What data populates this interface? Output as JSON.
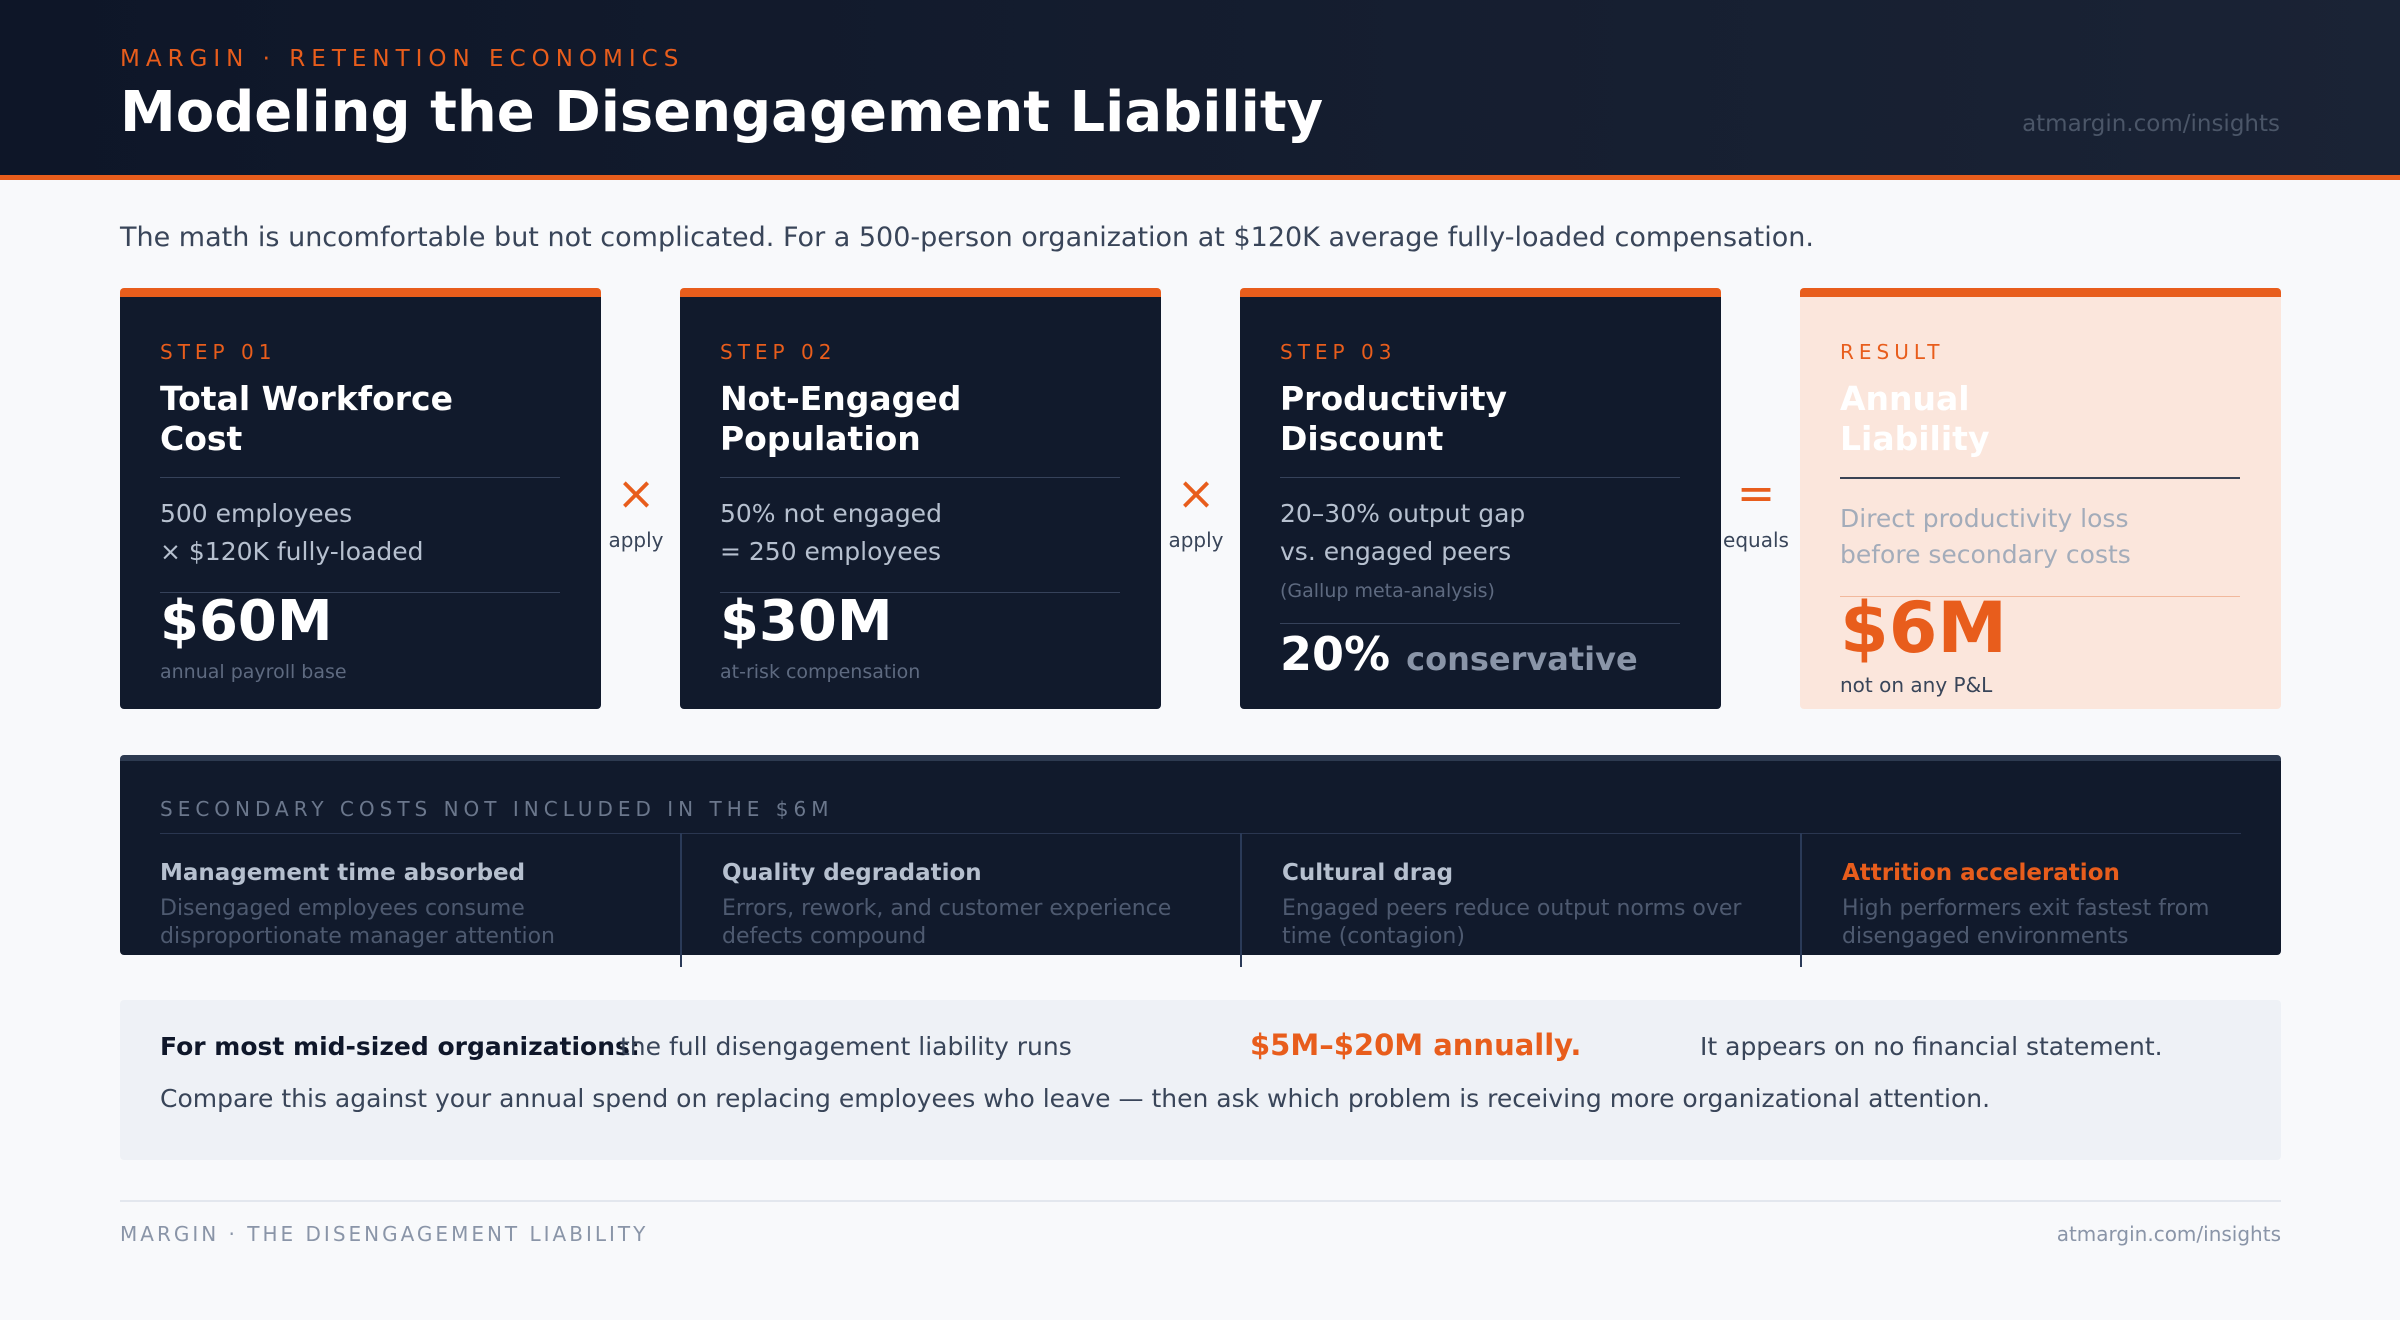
{
  "header": {
    "eyebrow": "MARGIN · RETENTION ECONOMICS",
    "title": "Modeling the Disengagement Liability",
    "url": "atmargin.com/insights"
  },
  "intro": "The math is uncomfortable but not complicated. For a 500-person organization at $120K average fully-loaded compensation.",
  "steps": [
    {
      "label": "STEP 01",
      "title": "Total Workforce Cost",
      "desc_line1": "500 employees",
      "desc_line2": "× $120K fully-loaded",
      "value": "$60M",
      "caption": "annual payroll base"
    },
    {
      "label": "STEP 02",
      "title": "Not-Engaged Population",
      "desc_line1": "50% not engaged",
      "desc_line2": "= 250 employees",
      "value": "$30M",
      "caption": "at-risk compensation"
    },
    {
      "label": "STEP 03",
      "title": "Productivity Discount",
      "desc_line1": "20–30% output gap",
      "desc_line2": "vs. engaged peers",
      "source": "(Gallup meta-analysis)",
      "value": "20%",
      "value_note": "conservative"
    }
  ],
  "result": {
    "label": "RESULT",
    "title": "Annual Liability",
    "desc_line1": "Direct productivity loss",
    "desc_line2": "before secondary costs",
    "value": "$6M",
    "caption": "not on any P&L"
  },
  "operators": [
    {
      "symbol": "×",
      "label": "apply"
    },
    {
      "symbol": "×",
      "label": "apply"
    },
    {
      "symbol": "=",
      "label": "equals"
    }
  ],
  "secondary": {
    "heading": "SECONDARY COSTS NOT INCLUDED IN THE $6M",
    "items": [
      {
        "title": "Management time absorbed",
        "text": "Disengaged employees consume disproportionate manager attention"
      },
      {
        "title": "Quality degradation",
        "text": "Errors, rework, and customer experience defects compound"
      },
      {
        "title": "Cultural drag",
        "text": "Engaged peers reduce output norms over time (contagion)"
      },
      {
        "title": "Attrition acceleration",
        "text": "High performers exit fastest from disengaged environments"
      }
    ]
  },
  "callout": {
    "lead": "For most mid-sized organizations:",
    "text": "the full disengagement liability runs",
    "range": "$5M–$20M annually.",
    "tail": "It appears on no financial statement.",
    "compare": "Compare this against your annual spend on replacing employees who leave — then ask which problem is receiving more organizational attention."
  },
  "footer": {
    "left": "MARGIN · THE DISENGAGEMENT LIABILITY",
    "right": "atmargin.com/insights"
  },
  "colors": {
    "accent": "#e85d1c",
    "navy": "#111a2c",
    "result_bg": "#fbe6dc"
  }
}
